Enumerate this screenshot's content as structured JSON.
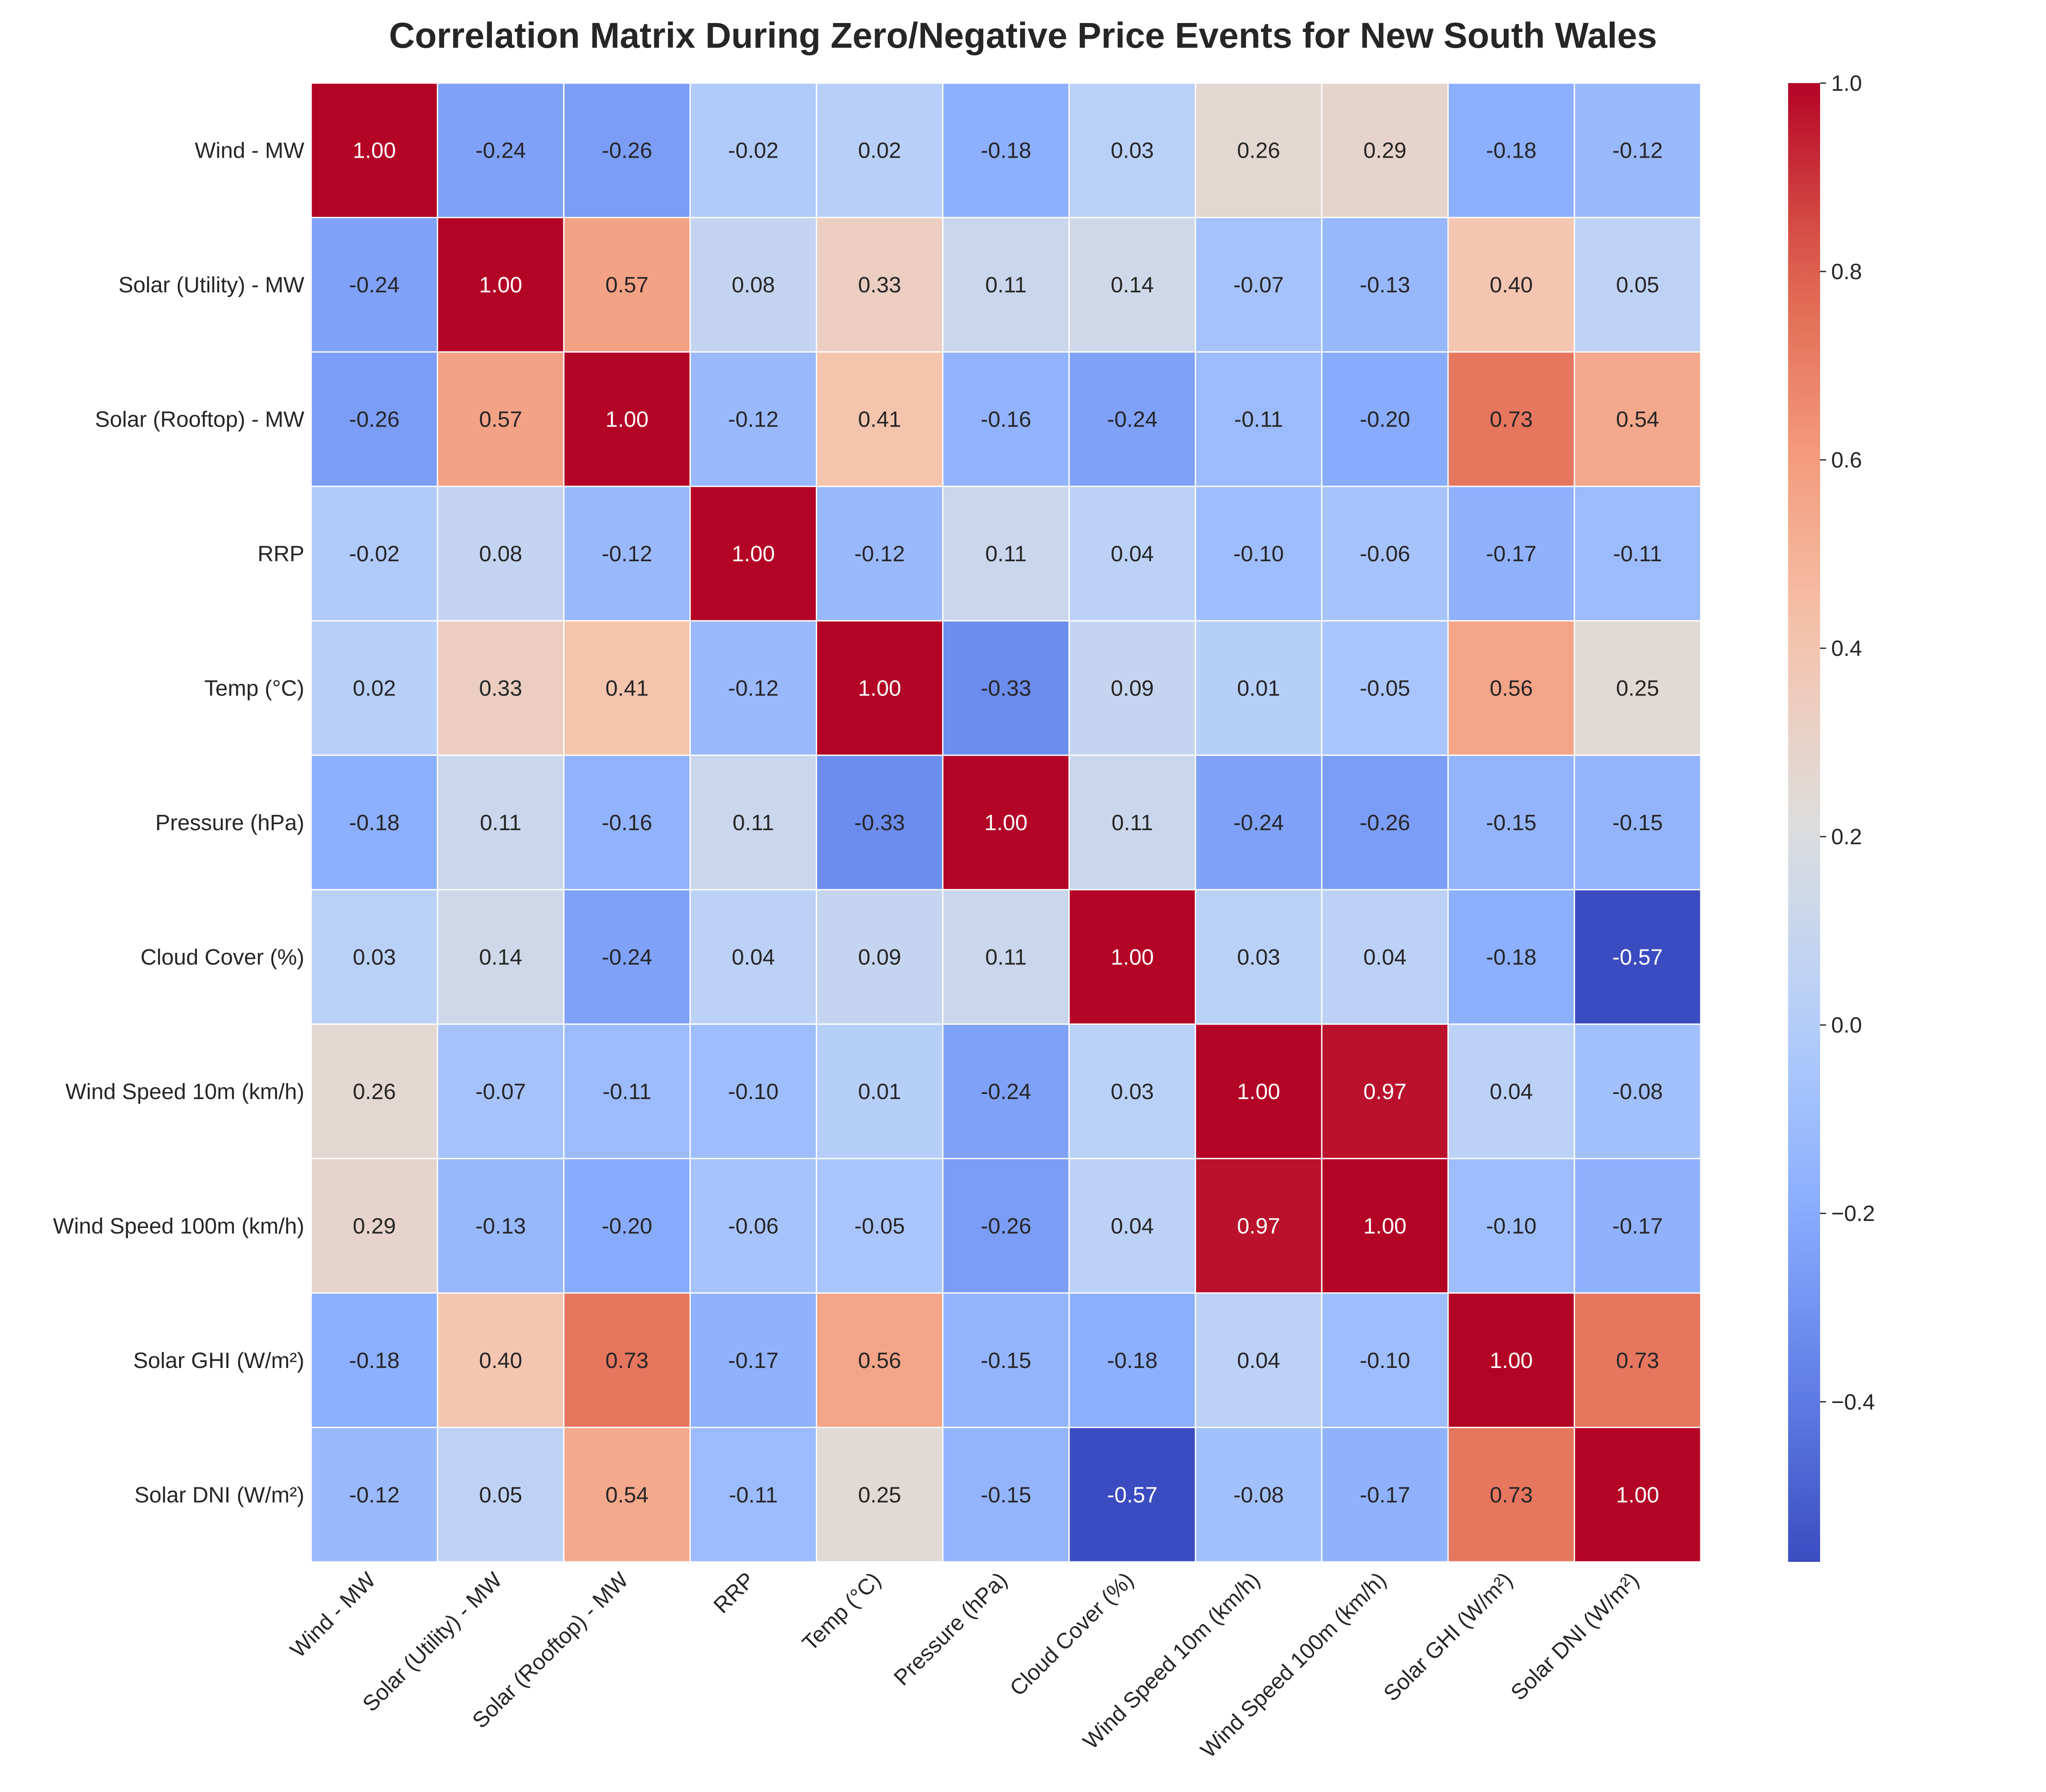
{
  "chart_data": {
    "type": "heatmap",
    "title": "Correlation Matrix During Zero/Negative Price Events for New South Wales",
    "xlabel": "",
    "ylabel": "",
    "labels": [
      "Wind -  MW",
      "Solar (Utility) -  MW",
      "Solar (Rooftop) -  MW",
      "RRP",
      "Temp (°C)",
      "Pressure (hPa)",
      "Cloud Cover (%)",
      "Wind Speed 10m (km/h)",
      "Wind Speed 100m (km/h)",
      "Solar GHI (W/m²)",
      "Solar DNI (W/m²)"
    ],
    "matrix": [
      [
        1.0,
        -0.24,
        -0.26,
        -0.02,
        0.02,
        -0.18,
        0.03,
        0.26,
        0.29,
        -0.18,
        -0.12
      ],
      [
        -0.24,
        1.0,
        0.57,
        0.08,
        0.33,
        0.11,
        0.14,
        -0.07,
        -0.13,
        0.4,
        0.05
      ],
      [
        -0.26,
        0.57,
        1.0,
        -0.12,
        0.41,
        -0.16,
        -0.24,
        -0.11,
        -0.2,
        0.73,
        0.54
      ],
      [
        -0.02,
        0.08,
        -0.12,
        1.0,
        -0.12,
        0.11,
        0.04,
        -0.1,
        -0.06,
        -0.17,
        -0.11
      ],
      [
        0.02,
        0.33,
        0.41,
        -0.12,
        1.0,
        -0.33,
        0.09,
        0.01,
        -0.05,
        0.56,
        0.25
      ],
      [
        -0.18,
        0.11,
        -0.16,
        0.11,
        -0.33,
        1.0,
        0.11,
        -0.24,
        -0.26,
        -0.15,
        -0.15
      ],
      [
        0.03,
        0.14,
        -0.24,
        0.04,
        0.09,
        0.11,
        1.0,
        0.03,
        0.04,
        -0.18,
        -0.57
      ],
      [
        0.26,
        -0.07,
        -0.11,
        -0.1,
        0.01,
        -0.24,
        0.03,
        1.0,
        0.97,
        0.04,
        -0.08
      ],
      [
        0.29,
        -0.13,
        -0.2,
        -0.06,
        -0.05,
        -0.26,
        0.04,
        0.97,
        1.0,
        -0.1,
        -0.17
      ],
      [
        -0.18,
        0.4,
        0.73,
        -0.17,
        0.56,
        -0.15,
        -0.18,
        0.04,
        -0.1,
        1.0,
        0.73
      ],
      [
        -0.12,
        0.05,
        0.54,
        -0.11,
        0.25,
        -0.15,
        -0.57,
        -0.08,
        -0.17,
        0.73,
        1.0
      ]
    ],
    "value_format": "0.00",
    "colormap": "coolwarm",
    "vmin": -0.57,
    "vmax": 1.0,
    "colorbar_ticks": [
      "−0.4",
      "−0.2",
      "0.0",
      "0.2",
      "0.4",
      "0.6",
      "0.8",
      "1.0"
    ],
    "colorbar_tick_values": [
      -0.4,
      -0.2,
      0.0,
      0.2,
      0.4,
      0.6,
      0.8,
      1.0
    ],
    "grid": true,
    "colors": {
      "cmap_low": "#3b4cc0",
      "cmap_mid": "#dddddd",
      "cmap_high": "#b40426",
      "cell_border": "#ffffff",
      "text_dark": "#262626",
      "text_light": "#ffffff"
    }
  }
}
